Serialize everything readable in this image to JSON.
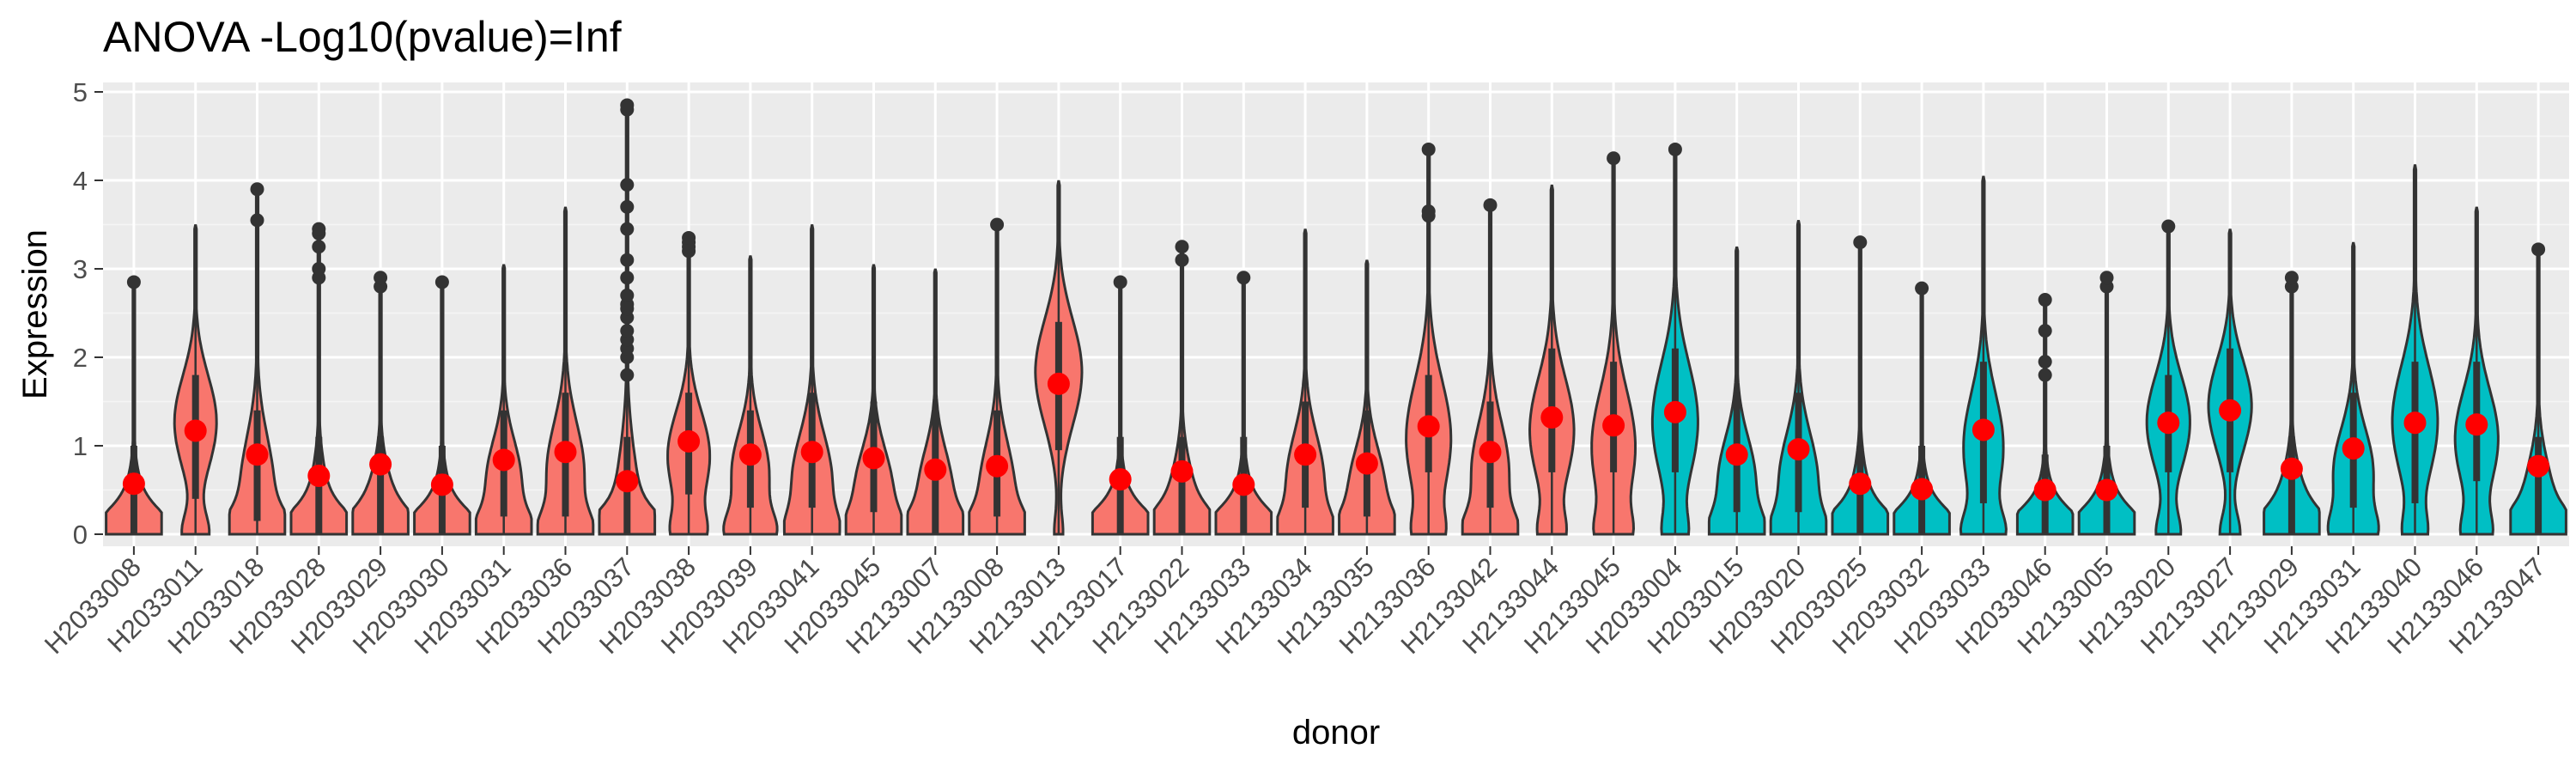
{
  "chart_data": {
    "type": "violin",
    "title": "ANOVA -Log10(pvalue)=Inf",
    "xlabel": "donor",
    "ylabel": "Expression",
    "ylim": [
      -0.2,
      5.1
    ],
    "yticks": [
      0,
      1,
      2,
      3,
      4,
      5
    ],
    "grid": true,
    "legend": "none",
    "colors": {
      "group_a": "#F8766D",
      "group_b": "#00BFC4",
      "mean_point": "#FF0000",
      "outline": "#333333",
      "panel": "#EBEBEB"
    },
    "categories": [
      "H2033008",
      "H2033011",
      "H2033018",
      "H2033028",
      "H2033029",
      "H2033030",
      "H2033031",
      "H2033036",
      "H2033037",
      "H2033038",
      "H2033039",
      "H2033041",
      "H2033045",
      "H2133007",
      "H2133008",
      "H2133013",
      "H2133017",
      "H2133022",
      "H2133033",
      "H2133034",
      "H2133035",
      "H2133036",
      "H2133042",
      "H2133044",
      "H2133045",
      "H2033004",
      "H2033015",
      "H2033020",
      "H2033025",
      "H2033032",
      "H2033033",
      "H2033046",
      "H2133005",
      "H2133020",
      "H2133027",
      "H2133029",
      "H2133031",
      "H2133040",
      "H2133046",
      "H2133047"
    ],
    "group": [
      "a",
      "a",
      "a",
      "a",
      "a",
      "a",
      "a",
      "a",
      "a",
      "a",
      "a",
      "a",
      "a",
      "a",
      "a",
      "a",
      "a",
      "a",
      "a",
      "a",
      "a",
      "a",
      "a",
      "a",
      "a",
      "b",
      "b",
      "b",
      "b",
      "b",
      "b",
      "b",
      "b",
      "b",
      "b",
      "b",
      "b",
      "b",
      "b",
      "b"
    ],
    "means": [
      0.57,
      1.17,
      0.9,
      0.66,
      0.79,
      0.56,
      0.84,
      0.93,
      0.6,
      1.05,
      0.9,
      0.93,
      0.86,
      0.73,
      0.77,
      1.7,
      0.62,
      0.71,
      0.56,
      0.9,
      0.8,
      1.22,
      0.93,
      1.32,
      1.23,
      1.38,
      0.9,
      0.96,
      0.57,
      0.51,
      1.18,
      0.5,
      0.5,
      1.26,
      1.4,
      0.74,
      0.97,
      1.26,
      1.24,
      0.77
    ],
    "max": [
      2.85,
      3.5,
      3.9,
      3.45,
      2.9,
      2.85,
      3.05,
      3.7,
      4.85,
      3.3,
      3.15,
      3.5,
      3.05,
      3.0,
      3.5,
      4.0,
      2.85,
      3.25,
      2.9,
      3.45,
      3.1,
      4.35,
      3.72,
      3.95,
      4.25,
      4.35,
      3.25,
      3.55,
      3.3,
      2.78,
      4.05,
      2.65,
      2.9,
      3.48,
      3.45,
      2.9,
      3.3,
      4.18,
      3.7,
      3.22
    ],
    "q1": [
      0,
      0.4,
      0.15,
      0,
      0,
      0,
      0.2,
      0.2,
      0,
      0.45,
      0.3,
      0.3,
      0.25,
      0,
      0.2,
      0.95,
      0,
      0,
      0,
      0.3,
      0.2,
      0.7,
      0.3,
      0.7,
      0.7,
      0.7,
      0.25,
      0.25,
      0,
      0,
      0.35,
      0,
      0,
      0.7,
      0.7,
      0,
      0.3,
      0.35,
      0.6,
      0
    ],
    "q3": [
      1.0,
      1.8,
      1.4,
      1.1,
      1.1,
      1.0,
      1.4,
      1.6,
      1.1,
      1.6,
      1.4,
      1.6,
      1.5,
      1.4,
      1.4,
      2.4,
      1.1,
      1.1,
      1.1,
      1.5,
      1.4,
      1.8,
      1.5,
      2.1,
      1.95,
      2.1,
      1.6,
      1.6,
      1.0,
      1.0,
      1.95,
      0.9,
      1.0,
      1.8,
      2.1,
      1.1,
      1.6,
      1.95,
      1.95,
      1.1
    ],
    "width_peak_y": [
      0,
      1.3,
      0.5,
      0,
      0.2,
      0,
      0.6,
      0.7,
      0,
      0.9,
      0.7,
      0.6,
      0.5,
      0.5,
      0.5,
      1.9,
      0,
      0.2,
      0,
      0.6,
      0.5,
      1.1,
      0.7,
      1.2,
      1.0,
      1.3,
      0.6,
      0.6,
      0,
      0,
      1.0,
      0,
      0,
      1.3,
      1.5,
      0.2,
      0.7,
      1.3,
      1.1,
      0.3
    ],
    "zero_mass": [
      0.95,
      0.45,
      0.85,
      1.0,
      0.95,
      1.0,
      0.8,
      0.7,
      1.0,
      0.5,
      0.7,
      0.6,
      0.7,
      0.85,
      0.8,
      0.15,
      1.0,
      0.95,
      1.0,
      0.7,
      0.75,
      0.4,
      0.7,
      0.4,
      0.45,
      0.35,
      0.7,
      0.65,
      1.0,
      1.0,
      0.6,
      1.0,
      1.0,
      0.4,
      0.35,
      0.95,
      0.6,
      0.35,
      0.45,
      0.95
    ],
    "outliers": [
      [
        2.85
      ],
      [],
      [
        3.55,
        3.9
      ],
      [
        2.9,
        3.0,
        3.25,
        3.4,
        3.45
      ],
      [
        2.8,
        2.9
      ],
      [
        2.85
      ],
      [],
      [],
      [
        1.8,
        2.0,
        2.1,
        2.2,
        2.3,
        2.45,
        2.55,
        2.6,
        2.7,
        2.9,
        3.1,
        3.45,
        3.7,
        3.95,
        4.8,
        4.85
      ],
      [
        3.2,
        3.25,
        3.3,
        3.35
      ],
      [],
      [],
      [],
      [],
      [
        3.5
      ],
      [],
      [
        2.85
      ],
      [
        3.1,
        3.25
      ],
      [
        2.9
      ],
      [],
      [],
      [
        3.6,
        3.65,
        4.35
      ],
      [
        3.72
      ],
      [],
      [
        4.25
      ],
      [
        4.35
      ],
      [],
      [],
      [
        3.3
      ],
      [
        2.78
      ],
      [],
      [
        1.8,
        1.95,
        2.3,
        2.65
      ],
      [
        2.8,
        2.9
      ],
      [
        3.48
      ],
      [],
      [
        2.8,
        2.9
      ],
      [],
      [],
      [],
      [
        3.22
      ]
    ]
  }
}
